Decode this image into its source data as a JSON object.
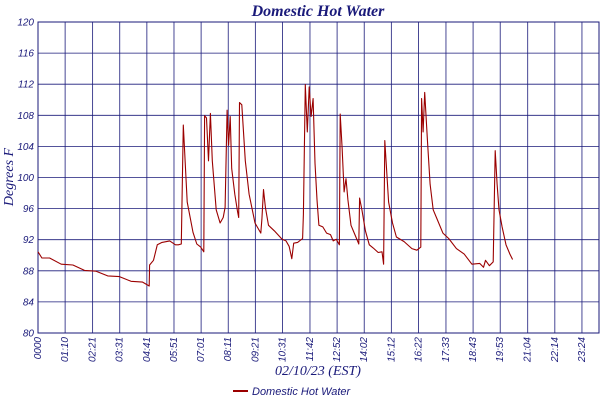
{
  "chart_data": {
    "type": "line",
    "title": "Domestic Hot Water",
    "xlabel": "02/10/23 (EST)",
    "ylabel": "Degrees F",
    "ylim": [
      80,
      120
    ],
    "xlim_minutes": [
      0,
      1448
    ],
    "yticks": [
      80,
      84,
      88,
      92,
      96,
      100,
      104,
      108,
      112,
      116,
      120
    ],
    "xticks": [
      {
        "label": "0000",
        "minute": 0
      },
      {
        "label": "01:10",
        "minute": 70
      },
      {
        "label": "02:21",
        "minute": 141
      },
      {
        "label": "03:31",
        "minute": 211
      },
      {
        "label": "04:41",
        "minute": 281
      },
      {
        "label": "05:51",
        "minute": 351
      },
      {
        "label": "07:01",
        "minute": 421
      },
      {
        "label": "08:11",
        "minute": 491
      },
      {
        "label": "09:21",
        "minute": 561
      },
      {
        "label": "10:31",
        "minute": 631
      },
      {
        "label": "11:42",
        "minute": 702
      },
      {
        "label": "12:52",
        "minute": 772
      },
      {
        "label": "14:02",
        "minute": 842
      },
      {
        "label": "15:12",
        "minute": 912
      },
      {
        "label": "16:22",
        "minute": 982
      },
      {
        "label": "17:33",
        "minute": 1053
      },
      {
        "label": "18:43",
        "minute": 1123
      },
      {
        "label": "19:53",
        "minute": 1193
      },
      {
        "label": "21:04",
        "minute": 1264
      },
      {
        "label": "22:14",
        "minute": 1334
      },
      {
        "label": "23:24",
        "minute": 1404
      }
    ],
    "grid": true,
    "legend_position": "bottom",
    "series": [
      {
        "name": "Domestic Hot Water",
        "color": "#9b0000",
        "points": [
          [
            0,
            90.3
          ],
          [
            10,
            89.8
          ],
          [
            30,
            89.5
          ],
          [
            60,
            89.0
          ],
          [
            90,
            88.6
          ],
          [
            120,
            88.2
          ],
          [
            150,
            87.8
          ],
          [
            180,
            87.5
          ],
          [
            210,
            87.1
          ],
          [
            240,
            86.8
          ],
          [
            270,
            86.4
          ],
          [
            287,
            86.2
          ],
          [
            288,
            88.6
          ],
          [
            298,
            89.5
          ],
          [
            308,
            91.2
          ],
          [
            320,
            91.8
          ],
          [
            340,
            91.7
          ],
          [
            355,
            91.5
          ],
          [
            362,
            91.2
          ],
          [
            370,
            91.6
          ],
          [
            375,
            106.6
          ],
          [
            385,
            97.0
          ],
          [
            400,
            92.8
          ],
          [
            410,
            91.6
          ],
          [
            420,
            90.9
          ],
          [
            428,
            90.6
          ],
          [
            430,
            107.8
          ],
          [
            435,
            107.8
          ],
          [
            440,
            102.0
          ],
          [
            445,
            108.4
          ],
          [
            450,
            102.0
          ],
          [
            460,
            96.0
          ],
          [
            470,
            94.0
          ],
          [
            478,
            95.0
          ],
          [
            483,
            96.0
          ],
          [
            488,
            108.8
          ],
          [
            492,
            104.0
          ],
          [
            496,
            108.0
          ],
          [
            500,
            101.0
          ],
          [
            508,
            98.0
          ],
          [
            515,
            95.5
          ],
          [
            518,
            95.0
          ],
          [
            520,
            109.5
          ],
          [
            526,
            109.5
          ],
          [
            535,
            102.0
          ],
          [
            545,
            98.0
          ],
          [
            560,
            94.0
          ],
          [
            575,
            93.0
          ],
          [
            578,
            94.5
          ],
          [
            582,
            98.6
          ],
          [
            587,
            96.0
          ],
          [
            595,
            94.0
          ],
          [
            610,
            93.0
          ],
          [
            630,
            92.2
          ],
          [
            640,
            91.7
          ],
          [
            648,
            91.3
          ],
          [
            650,
            90.6
          ],
          [
            655,
            89.7
          ],
          [
            660,
            91.4
          ],
          [
            670,
            91.8
          ],
          [
            683,
            92.0
          ],
          [
            685,
            95.4
          ],
          [
            690,
            111.8
          ],
          [
            695,
            106.0
          ],
          [
            700,
            111.5
          ],
          [
            705,
            108.0
          ],
          [
            710,
            110.0
          ],
          [
            715,
            102.0
          ],
          [
            720,
            97.0
          ],
          [
            725,
            94.0
          ],
          [
            735,
            93.5
          ],
          [
            745,
            93.0
          ],
          [
            755,
            92.5
          ],
          [
            762,
            92.0
          ],
          [
            770,
            91.9
          ],
          [
            778,
            91.5
          ],
          [
            780,
            108.0
          ],
          [
            785,
            104.0
          ],
          [
            790,
            98.0
          ],
          [
            795,
            100.0
          ],
          [
            800,
            97.0
          ],
          [
            808,
            94.0
          ],
          [
            818,
            92.5
          ],
          [
            828,
            91.6
          ],
          [
            830,
            97.2
          ],
          [
            836,
            96.0
          ],
          [
            845,
            93.0
          ],
          [
            855,
            91.5
          ],
          [
            865,
            90.8
          ],
          [
            878,
            90.5
          ],
          [
            888,
            90.3
          ],
          [
            892,
            89.0
          ],
          [
            895,
            104.6
          ],
          [
            905,
            97.0
          ],
          [
            915,
            94.0
          ],
          [
            925,
            92.5
          ],
          [
            945,
            91.6
          ],
          [
            965,
            91.0
          ],
          [
            978,
            90.5
          ],
          [
            988,
            91.2
          ],
          [
            990,
            110.0
          ],
          [
            994,
            106.0
          ],
          [
            998,
            110.8
          ],
          [
            1005,
            105.0
          ],
          [
            1012,
            99.0
          ],
          [
            1020,
            96.0
          ],
          [
            1030,
            94.5
          ],
          [
            1045,
            93.0
          ],
          [
            1060,
            92.0
          ],
          [
            1080,
            91.0
          ],
          [
            1100,
            90.0
          ],
          [
            1120,
            89.0
          ],
          [
            1140,
            88.8
          ],
          [
            1150,
            88.6
          ],
          [
            1155,
            89.2
          ],
          [
            1165,
            88.8
          ],
          [
            1175,
            89.0
          ],
          [
            1180,
            103.6
          ],
          [
            1185,
            99.0
          ],
          [
            1190,
            96.0
          ],
          [
            1198,
            93.5
          ],
          [
            1208,
            91.5
          ],
          [
            1218,
            90.0
          ],
          [
            1225,
            89.6
          ]
        ]
      }
    ]
  }
}
